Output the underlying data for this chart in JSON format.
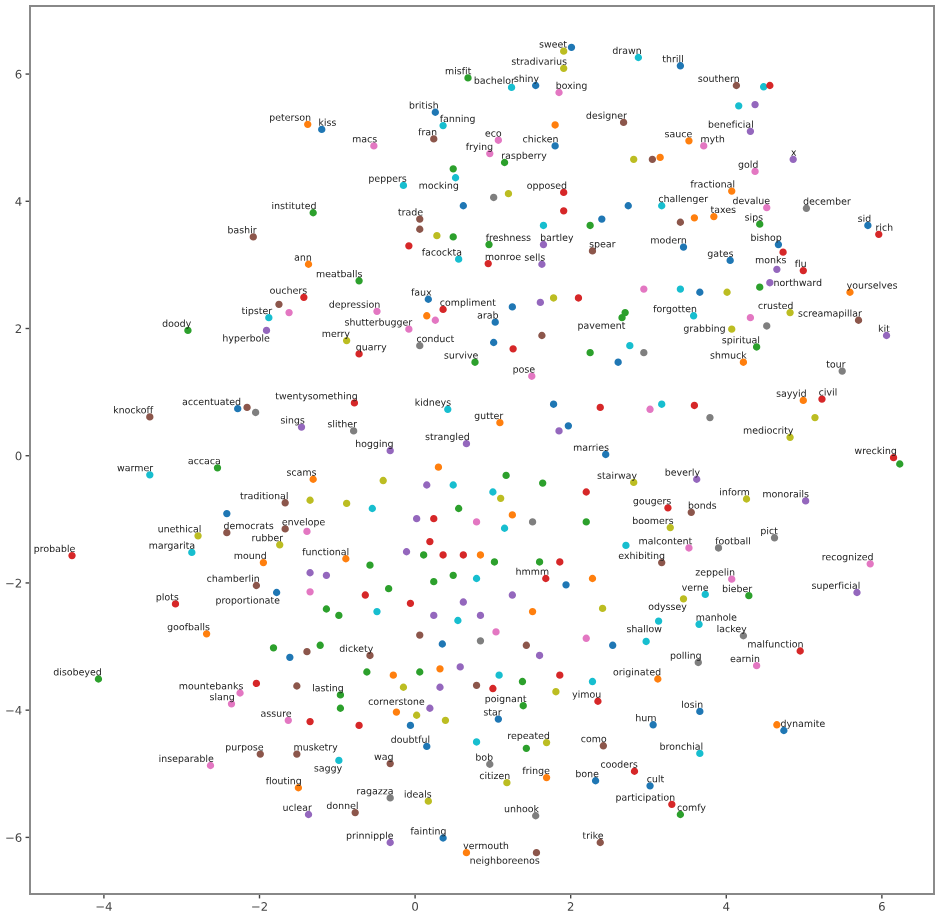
{
  "chart_data": {
    "type": "scatter",
    "marker": "circle",
    "grid": false,
    "xlim": [
      -4.95,
      6.67
    ],
    "ylim": [
      -6.89,
      7.07
    ],
    "xticks": [
      {
        "value": -4,
        "label": "−4"
      },
      {
        "value": -2,
        "label": "−2"
      },
      0,
      2,
      4,
      6
    ],
    "yticks": [
      {
        "value": -6,
        "label": "−6"
      },
      {
        "value": -4,
        "label": "−4"
      },
      {
        "value": -2,
        "label": "−2"
      },
      0,
      2,
      4,
      6
    ],
    "x": [
      -1.38,
      -1.2,
      -1.31,
      -2.08,
      -1.37,
      -0.72,
      -1.43,
      -1.88,
      -1.62,
      -1.75,
      -1.91,
      -2.92,
      -3.41,
      -2.28,
      -2.16,
      -2.05,
      -0.78,
      -1.46,
      -3.41,
      -2.54,
      -1.31,
      1.91,
      2.01,
      1.91,
      0.68,
      1.24,
      1.55,
      1.85,
      2.87,
      3.41,
      4.13,
      4.48,
      4.56,
      4.16,
      4.37,
      4.31,
      4.86,
      4.37,
      4.07,
      4.52,
      5.03,
      4.43,
      4.67,
      4.73,
      5.82,
      5.96,
      4.99,
      4.65,
      4.05,
      5.59,
      4.82,
      5.7,
      6.06,
      4.39,
      4.22,
      5.49,
      4.99,
      5.23,
      5.14,
      4.82,
      6.15,
      6.23,
      3.58,
      4.07,
      3.45,
      3.52,
      3.71,
      3.17,
      3.84,
      0.26,
      0.36,
      0.24,
      -0.53,
      1.07,
      1.8,
      1.8,
      2.68,
      1.15,
      0.96,
      0.49,
      0.52,
      -0.15,
      1.91,
      0.06,
      0.95,
      0.56,
      0.94,
      1.65,
      1.63,
      2.28,
      0.17,
      0.36,
      -0.49,
      -0.08,
      -0.88,
      -0.72,
      0.06,
      1.03,
      0.77,
      1.5,
      0.42,
      1.09,
      -0.79,
      0.66,
      -0.32,
      2.45,
      2.66,
      -4.41,
      -4.07,
      -3.08,
      -2.68,
      -2.87,
      -2.79,
      -2.42,
      -2.42,
      -1.67,
      -1.67,
      -1.74,
      -1.95,
      -1.78,
      -1.61,
      -2.25,
      -2.36,
      -2.04,
      -1.63,
      -1.99,
      -1.52,
      -2.63,
      -1.5,
      -1.37,
      2.81,
      3.62,
      4.26,
      5.02,
      3.25,
      3.55,
      3.28,
      4.62,
      5.85,
      5.68,
      3.9,
      3.52,
      3.17,
      4.07,
      4.29,
      3.73,
      3.45,
      3.13,
      3.65,
      4.22,
      4.95,
      3.64,
      4.39,
      3.12,
      3.66,
      4.65,
      4.74,
      3.06,
      3.66,
      2.82,
      3.02,
      3.3,
      3.41,
      2.38,
      1.55,
      0.66,
      1.56,
      0.36,
      -0.32,
      -0.32,
      0.17,
      -0.77,
      -0.98,
      -0.32,
      0.96,
      1.18,
      1.69,
      2.32,
      2.42,
      1.07,
      1.69,
      2.35,
      1.39,
      -0.41,
      0.15,
      0.49,
      0.3,
      -1.35,
      -0.55,
      -0.88,
      0.24,
      0.56,
      0.79,
      0.02,
      -1.39,
      -0.89,
      -0.11,
      0.19,
      0.11,
      0.36,
      0.62,
      0.84,
      -0.58,
      -1.14,
      0.49,
      0.79,
      0.24,
      -0.34,
      -0.64,
      -0.06,
      0.62,
      -1.35,
      -0.98,
      -0.49,
      0.24,
      0.55,
      0.84,
      -1.22,
      -1.39,
      0.06,
      0.35,
      0.84,
      -0.58,
      -0.62,
      -0.28,
      0.32,
      0.58,
      0.06,
      -0.15,
      0.32,
      0.79,
      -0.96,
      -0.96,
      -0.72,
      -1.35,
      -0.24,
      0.02,
      0.19,
      0.39,
      -0.06,
      0.15,
      0.79,
      1.17,
      1.64,
      1.0,
      1.1,
      2.2,
      1.25,
      1.51,
      2.2,
      1.15,
      2.71,
      1.02,
      1.6,
      1.86,
      1.94,
      1.68,
      2.28,
      1.25,
      1.51,
      2.41,
      2.97,
      2.2,
      2.54,
      1.04,
      1.43,
      1.6,
      1.08,
      1.38,
      1.86,
      2.28,
      1.0,
      1.81,
      1.43,
      2.61,
      2.25,
      1.26,
      1.01,
      1.63,
      1.78,
      2.1,
      1.25,
      1.61,
      0.26,
      0.15,
      1.78,
      2.38,
      1.85,
      1.97,
      0.62,
      1.01,
      1.2,
      1.65,
      2.4,
      2.25,
      1.91,
      0.06,
      0.28,
      0.49,
      -0.08,
      3.15,
      2.81,
      3.05,
      2.74,
      3.41,
      3.59,
      2.94,
      3.41,
      4.01,
      3.66,
      4.43,
      4.56,
      2.7,
      4.31,
      4.52,
      2.76,
      2.94,
      3.17,
      3.02,
      3.59,
      3.79,
      -1.35,
      -1.14,
      -1.52,
      -2.04,
      -1.82
    ],
    "values": [
      5.21,
      5.13,
      3.82,
      3.44,
      3.01,
      2.75,
      2.49,
      2.17,
      2.25,
      2.38,
      1.97,
      1.97,
      0.61,
      0.74,
      0.76,
      0.68,
      0.83,
      0.45,
      -0.3,
      -0.19,
      -0.37,
      6.36,
      6.42,
      6.09,
      5.94,
      5.79,
      5.82,
      5.71,
      6.26,
      6.13,
      5.82,
      5.8,
      5.82,
      5.5,
      5.52,
      5.1,
      4.66,
      4.47,
      4.16,
      3.9,
      3.89,
      3.64,
      3.32,
      3.2,
      3.62,
      3.48,
      2.91,
      2.93,
      3.07,
      2.57,
      2.25,
      2.13,
      1.89,
      1.71,
      1.47,
      1.33,
      0.87,
      0.89,
      0.6,
      0.29,
      -0.03,
      -0.13,
      2.2,
      1.99,
      3.28,
      4.95,
      4.87,
      3.93,
      3.76,
      5.4,
      5.19,
      4.98,
      4.87,
      4.96,
      4.87,
      5.2,
      5.24,
      4.61,
      4.75,
      4.51,
      4.37,
      4.25,
      4.14,
      3.72,
      3.32,
      3.09,
      3.02,
      3.32,
      3.01,
      3.22,
      2.46,
      2.3,
      2.27,
      1.99,
      1.81,
      1.6,
      1.73,
      2.1,
      1.47,
      1.25,
      0.73,
      0.52,
      0.39,
      0.19,
      0.08,
      0.02,
      2.17,
      -1.57,
      -3.51,
      -2.33,
      -2.8,
      -1.52,
      -1.26,
      -1.21,
      -0.91,
      -0.74,
      -1.15,
      -1.4,
      -1.68,
      -2.15,
      -3.17,
      -3.73,
      -3.9,
      -3.58,
      -4.16,
      -4.69,
      -4.69,
      -4.87,
      -5.22,
      -5.64,
      -0.42,
      -0.37,
      -0.68,
      -0.71,
      -0.82,
      -0.89,
      -1.13,
      -1.29,
      -1.7,
      -2.15,
      -1.45,
      -1.45,
      -1.68,
      -1.94,
      -2.2,
      -2.18,
      -2.25,
      -2.6,
      -2.65,
      -2.83,
      -3.07,
      -3.25,
      -3.3,
      -3.51,
      -4.02,
      -4.23,
      -4.32,
      -4.23,
      -4.68,
      -4.96,
      -5.19,
      -5.48,
      -5.64,
      -6.08,
      -5.66,
      -6.24,
      -6.24,
      -6.01,
      -6.08,
      -5.38,
      -5.43,
      -5.61,
      -4.79,
      -4.84,
      -4.85,
      -5.14,
      -5.06,
      -5.11,
      -4.56,
      -4.14,
      -4.51,
      -3.86,
      -3.93,
      -0.39,
      -0.46,
      -0.46,
      -0.18,
      -0.7,
      -0.83,
      -0.75,
      -0.99,
      -0.83,
      -1.04,
      -0.99,
      -1.19,
      -1.62,
      -1.51,
      -1.35,
      -1.56,
      -1.56,
      -1.56,
      -1.56,
      -1.72,
      -1.88,
      -1.88,
      -1.93,
      -1.98,
      -2.09,
      -2.19,
      -2.32,
      -2.3,
      -2.14,
      -2.51,
      -2.45,
      -2.51,
      -2.59,
      -2.51,
      -2.98,
      -3.08,
      -2.82,
      -2.96,
      -2.91,
      -3.14,
      -3.4,
      -3.45,
      -3.35,
      -3.32,
      -3.4,
      -3.64,
      -3.64,
      -3.61,
      -3.76,
      -3.97,
      -4.24,
      -4.18,
      -4.03,
      -4.08,
      -3.97,
      -4.16,
      -4.24,
      -4.57,
      -4.5,
      -0.31,
      -0.43,
      -0.57,
      -0.67,
      -0.57,
      -0.93,
      -1.04,
      -1.04,
      -1.14,
      -1.41,
      -1.67,
      -1.67,
      -1.67,
      -2.03,
      -1.93,
      -1.93,
      -2.19,
      -2.45,
      -2.4,
      -2.92,
      -2.87,
      -2.98,
      -2.77,
      -2.98,
      -3.14,
      -3.45,
      -3.55,
      -3.45,
      -3.55,
      -3.66,
      -3.71,
      -4.6,
      1.47,
      1.62,
      1.68,
      1.78,
      1.89,
      2.48,
      2.48,
      2.34,
      2.41,
      2.13,
      2.2,
      0.81,
      0.76,
      0.39,
      0.47,
      3.93,
      4.06,
      4.12,
      3.62,
      3.72,
      3.62,
      3.85,
      3.56,
      3.46,
      3.44,
      3.3,
      4.69,
      4.66,
      4.66,
      3.93,
      3.67,
      3.74,
      2.62,
      2.62,
      2.57,
      2.57,
      2.65,
      2.72,
      2.25,
      2.17,
      2.04,
      1.73,
      1.62,
      0.81,
      0.73,
      0.79,
      0.6,
      -1.84,
      -2.41,
      -3.62,
      -2.04,
      -3.02
    ],
    "colors": [
      "#ff7f0e",
      "#1f77b4",
      "#2ca02c",
      "#8c564b",
      "#ff7f0e",
      "#2ca02c",
      "#d62728",
      "#17becf",
      "#e377c2",
      "#8c564b",
      "#9467bd",
      "#2ca02c",
      "#8c564b",
      "#1f77b4",
      "#8c564b",
      "#7f7f7f",
      "#d62728",
      "#9467bd",
      "#17becf",
      "#2ca02c",
      "#ff7f0e",
      "#bcbd22",
      "#1f77b4",
      "#bcbd22",
      "#2ca02c",
      "#17becf",
      "#1f77b4",
      "#e377c2",
      "#17becf",
      "#1f77b4",
      "#8c564b",
      "#17becf",
      "#d62728",
      "#17becf",
      "#9467bd",
      "#9467bd",
      "#9467bd",
      "#e377c2",
      "#ff7f0e",
      "#e377c2",
      "#7f7f7f",
      "#2ca02c",
      "#1f77b4",
      "#d62728",
      "#1f77b4",
      "#d62728",
      "#d62728",
      "#9467bd",
      "#1f77b4",
      "#ff7f0e",
      "#bcbd22",
      "#8c564b",
      "#9467bd",
      "#2ca02c",
      "#ff7f0e",
      "#7f7f7f",
      "#ff7f0e",
      "#d62728",
      "#bcbd22",
      "#bcbd22",
      "#d62728",
      "#2ca02c",
      "#17becf",
      "#bcbd22",
      "#1f77b4",
      "#ff7f0e",
      "#e377c2",
      "#17becf",
      "#ff7f0e",
      "#1f77b4",
      "#17becf",
      "#8c564b",
      "#e377c2",
      "#e377c2",
      "#1f77b4",
      "#ff7f0e",
      "#8c564b",
      "#2ca02c",
      "#e377c2",
      "#2ca02c",
      "#17becf",
      "#17becf",
      "#d62728",
      "#8c564b",
      "#2ca02c",
      "#17becf",
      "#d62728",
      "#9467bd",
      "#9467bd",
      "#8c564b",
      "#1f77b4",
      "#d62728",
      "#e377c2",
      "#e377c2",
      "#bcbd22",
      "#d62728",
      "#7f7f7f",
      "#1f77b4",
      "#2ca02c",
      "#e377c2",
      "#17becf",
      "#ff7f0e",
      "#7f7f7f",
      "#9467bd",
      "#9467bd",
      "#1f77b4",
      "#2ca02c",
      "#d62728",
      "#2ca02c",
      "#d62728",
      "#ff7f0e",
      "#17becf",
      "#bcbd22",
      "#8c564b",
      "#1f77b4",
      "#8c564b",
      "#8c564b",
      "#bcbd22",
      "#ff7f0e",
      "#1f77b4",
      "#1f77b4",
      "#e377c2",
      "#e377c2",
      "#d62728",
      "#e377c2",
      "#8c564b",
      "#8c564b",
      "#e377c2",
      "#ff7f0e",
      "#9467bd",
      "#bcbd22",
      "#9467bd",
      "#bcbd22",
      "#9467bd",
      "#d62728",
      "#8c564b",
      "#bcbd22",
      "#7f7f7f",
      "#e377c2",
      "#9467bd",
      "#7f7f7f",
      "#e377c2",
      "#8c564b",
      "#e377c2",
      "#2ca02c",
      "#17becf",
      "#bcbd22",
      "#17becf",
      "#17becf",
      "#7f7f7f",
      "#d62728",
      "#7f7f7f",
      "#e377c2",
      "#ff7f0e",
      "#1f77b4",
      "#ff7f0e",
      "#1f77b4",
      "#1f77b4",
      "#17becf",
      "#d62728",
      "#1f77b4",
      "#d62728",
      "#2ca02c",
      "#8c564b",
      "#7f7f7f",
      "#ff7f0e",
      "#8c564b",
      "#1f77b4",
      "#9467bd",
      "#7f7f7f",
      "#bcbd22",
      "#8c564b",
      "#17becf",
      "#8c564b",
      "#7f7f7f",
      "#bcbd22",
      "#ff7f0e",
      "#1f77b4",
      "#8c564b",
      "#1f77b4",
      "#bcbd22",
      "#d62728",
      "#2ca02c",
      "#bcbd22",
      "#9467bd",
      "#17becf",
      "#ff7f0e",
      "#bcbd22",
      "#17becf",
      "#bcbd22",
      "#d62728",
      "#2ca02c",
      "#e377c2",
      "#9467bd",
      "#e377c2",
      "#ff7f0e",
      "#9467bd",
      "#d62728",
      "#2ca02c",
      "#d62728",
      "#d62728",
      "#ff7f0e",
      "#2ca02c",
      "#9467bd",
      "#2ca02c",
      "#17becf",
      "#2ca02c",
      "#2ca02c",
      "#d62728",
      "#d62728",
      "#9467bd",
      "#e377c2",
      "#2ca02c",
      "#17becf",
      "#9467bd",
      "#17becf",
      "#9467bd",
      "#2ca02c",
      "#8c564b",
      "#8c564b",
      "#1f77b4",
      "#7f7f7f",
      "#8c564b",
      "#2ca02c",
      "#ff7f0e",
      "#ff7f0e",
      "#9467bd",
      "#2ca02c",
      "#bcbd22",
      "#9467bd",
      "#8c564b",
      "#2ca02c",
      "#2ca02c",
      "#d62728",
      "#d62728",
      "#ff7f0e",
      "#bcbd22",
      "#9467bd",
      "#bcbd22",
      "#1f77b4",
      "#1f77b4",
      "#17becf",
      "#2ca02c",
      "#2ca02c",
      "#17becf",
      "#bcbd22",
      "#d62728",
      "#ff7f0e",
      "#7f7f7f",
      "#2ca02c",
      "#17becf",
      "#17becf",
      "#2ca02c",
      "#2ca02c",
      "#d62728",
      "#1f77b4",
      "#d62728",
      "#ff7f0e",
      "#9467bd",
      "#ff7f0e",
      "#bcbd22",
      "#17becf",
      "#e377c2",
      "#1f77b4",
      "#e377c2",
      "#8c564b",
      "#9467bd",
      "#17becf",
      "#2ca02c",
      "#d62728",
      "#17becf",
      "#d62728",
      "#bcbd22",
      "#2ca02c",
      "#1f77b4",
      "#2ca02c",
      "#d62728",
      "#1f77b4",
      "#8c564b",
      "#bcbd22",
      "#d62728",
      "#1f77b4",
      "#9467bd",
      "#e377c2",
      "#ff7f0e",
      "#1f77b4",
      "#d62728",
      "#9467bd",
      "#1f77b4",
      "#1f77b4",
      "#7f7f7f",
      "#bcbd22",
      "#17becf",
      "#1f77b4",
      "#2ca02c",
      "#d62728",
      "#8c564b",
      "#bcbd22",
      "#2ca02c",
      "#d62728",
      "#ff7f0e",
      "#bcbd22",
      "#8c564b",
      "#1f77b4",
      "#8c564b",
      "#ff7f0e",
      "#e377c2",
      "#17becf",
      "#bcbd22",
      "#1f77b4",
      "#2ca02c",
      "#9467bd",
      "#2ca02c",
      "#e377c2",
      "#7f7f7f",
      "#17becf",
      "#7f7f7f",
      "#17becf",
      "#e377c2",
      "#d62728",
      "#7f7f7f",
      "#9467bd",
      "#2ca02c",
      "#8c564b",
      "#8c564b",
      "#2ca02c"
    ],
    "annotations": [
      {
        "text": "peterson",
        "x": -1.38,
        "y": 5.21
      },
      {
        "text": "kiss",
        "x": -1.2,
        "y": 5.13
      },
      {
        "text": "instituted",
        "x": -1.31,
        "y": 3.82
      },
      {
        "text": "bashir",
        "x": -2.08,
        "y": 3.44
      },
      {
        "text": "ann",
        "x": -1.37,
        "y": 3.01
      },
      {
        "text": "meatballs",
        "x": -0.72,
        "y": 2.75
      },
      {
        "text": "ouchers",
        "x": -1.43,
        "y": 2.49
      },
      {
        "text": "tipster",
        "x": -1.88,
        "y": 2.17
      },
      {
        "text": "hyperbole",
        "x": -1.91,
        "y": 1.97
      },
      {
        "text": "doody",
        "x": -2.92,
        "y": 1.97
      },
      {
        "text": "knockoff",
        "x": -3.41,
        "y": 0.61
      },
      {
        "text": "accentuated",
        "x": -2.28,
        "y": 0.74
      },
      {
        "text": "twentysomething",
        "x": -0.78,
        "y": 0.83
      },
      {
        "text": "sings",
        "x": -1.46,
        "y": 0.45
      },
      {
        "text": "warmer",
        "x": -3.41,
        "y": -0.3
      },
      {
        "text": "accaca",
        "x": -2.54,
        "y": -0.19
      },
      {
        "text": "scams",
        "x": -1.31,
        "y": -0.37
      },
      {
        "text": "sweet",
        "x": 1.91,
        "y": 6.36
      },
      {
        "text": "stradivarius",
        "x": 1.91,
        "y": 6.09
      },
      {
        "text": "misfit",
        "x": 0.68,
        "y": 5.94
      },
      {
        "text": "bachelor",
        "x": 1.24,
        "y": 5.79
      },
      {
        "text": "shiny",
        "x": 1.55,
        "y": 5.82
      },
      {
        "text": "boxing",
        "x": 1.85,
        "y": 5.71
      },
      {
        "text": "drawn",
        "x": 2.87,
        "y": 6.26
      },
      {
        "text": "thrill",
        "x": 3.41,
        "y": 6.13
      },
      {
        "text": "southern",
        "x": 4.13,
        "y": 5.82
      },
      {
        "text": "beneficial",
        "x": 4.31,
        "y": 5.1
      },
      {
        "text": "x",
        "x": 4.86,
        "y": 4.66
      },
      {
        "text": "gold",
        "x": 4.37,
        "y": 4.47
      },
      {
        "text": "fractional",
        "x": 4.07,
        "y": 4.16
      },
      {
        "text": "devalue",
        "x": 4.52,
        "y": 3.9
      },
      {
        "text": "december",
        "x": 5.03,
        "y": 3.89
      },
      {
        "text": "sips",
        "x": 4.43,
        "y": 3.64
      },
      {
        "text": "bishop",
        "x": 4.67,
        "y": 3.32
      },
      {
        "text": "monks",
        "x": 4.73,
        "y": 3.2
      },
      {
        "text": "sid",
        "x": 5.82,
        "y": 3.62
      },
      {
        "text": "rich",
        "x": 5.96,
        "y": 3.48
      },
      {
        "text": "flu",
        "x": 4.99,
        "y": 2.91
      },
      {
        "text": "northward",
        "x": 4.65,
        "y": 2.93
      },
      {
        "text": "gates",
        "x": 4.05,
        "y": 3.07
      },
      {
        "text": "yourselves",
        "x": 5.59,
        "y": 2.57
      },
      {
        "text": "crusted",
        "x": 4.82,
        "y": 2.25
      },
      {
        "text": "screamapillar",
        "x": 5.7,
        "y": 2.13
      },
      {
        "text": "kit",
        "x": 6.06,
        "y": 1.89
      },
      {
        "text": "spiritual",
        "x": 4.39,
        "y": 1.71
      },
      {
        "text": "shmuck",
        "x": 4.22,
        "y": 1.47
      },
      {
        "text": "tour",
        "x": 5.49,
        "y": 1.33
      },
      {
        "text": "sayyid",
        "x": 4.99,
        "y": 0.87
      },
      {
        "text": "civil",
        "x": 5.23,
        "y": 0.89
      },
      {
        "text": "mediocrity",
        "x": 4.82,
        "y": 0.29
      },
      {
        "text": "wrecking",
        "x": 6.15,
        "y": -0.03
      },
      {
        "text": "forgotten",
        "x": 3.58,
        "y": 2.2
      },
      {
        "text": "grabbing",
        "x": 4.07,
        "y": 1.99
      },
      {
        "text": "modern",
        "x": 3.45,
        "y": 3.28
      },
      {
        "text": "sauce",
        "x": 3.52,
        "y": 4.95
      },
      {
        "text": "myth",
        "x": 3.71,
        "y": 4.87
      },
      {
        "text": "challenger",
        "x": 3.17,
        "y": 3.93
      },
      {
        "text": "taxes",
        "x": 3.84,
        "y": 3.76
      },
      {
        "text": "british",
        "x": 0.26,
        "y": 5.4
      },
      {
        "text": "fanning",
        "x": 0.36,
        "y": 5.19
      },
      {
        "text": "fran",
        "x": 0.24,
        "y": 4.98
      },
      {
        "text": "macs",
        "x": -0.53,
        "y": 4.87
      },
      {
        "text": "eco",
        "x": 1.07,
        "y": 4.96
      },
      {
        "text": "chicken",
        "x": 1.8,
        "y": 4.87
      },
      {
        "text": "designer",
        "x": 2.68,
        "y": 5.24
      },
      {
        "text": "raspberry",
        "x": 1.15,
        "y": 4.61
      },
      {
        "text": "frying",
        "x": 0.96,
        "y": 4.75
      },
      {
        "text": "mocking",
        "x": 0.52,
        "y": 4.37
      },
      {
        "text": "peppers",
        "x": -0.15,
        "y": 4.25
      },
      {
        "text": "opposed",
        "x": 1.91,
        "y": 4.14
      },
      {
        "text": "trade",
        "x": 0.06,
        "y": 3.72
      },
      {
        "text": "freshness",
        "x": 0.95,
        "y": 3.32
      },
      {
        "text": "facockta",
        "x": 0.56,
        "y": 3.09
      },
      {
        "text": "monroe",
        "x": 0.94,
        "y": 3.02
      },
      {
        "text": "bartley",
        "x": 1.65,
        "y": 3.32
      },
      {
        "text": "sells",
        "x": 1.63,
        "y": 3.01
      },
      {
        "text": "spear",
        "x": 2.28,
        "y": 3.22
      },
      {
        "text": "faux",
        "x": 0.17,
        "y": 2.46
      },
      {
        "text": "compliment",
        "x": 0.36,
        "y": 2.3
      },
      {
        "text": "depression",
        "x": -0.49,
        "y": 2.27
      },
      {
        "text": "shutterbugger",
        "x": -0.08,
        "y": 1.99
      },
      {
        "text": "merry",
        "x": -0.88,
        "y": 1.81
      },
      {
        "text": "quarry",
        "x": -0.72,
        "y": 1.6
      },
      {
        "text": "conduct",
        "x": 0.06,
        "y": 1.73
      },
      {
        "text": "arab",
        "x": 1.03,
        "y": 2.1
      },
      {
        "text": "survive",
        "x": 0.77,
        "y": 1.47
      },
      {
        "text": "pose",
        "x": 1.5,
        "y": 1.25
      },
      {
        "text": "kidneys",
        "x": 0.42,
        "y": 0.73
      },
      {
        "text": "gutter",
        "x": 1.09,
        "y": 0.52
      },
      {
        "text": "slither",
        "x": -0.79,
        "y": 0.39
      },
      {
        "text": "strangled",
        "x": 0.66,
        "y": 0.19
      },
      {
        "text": "hogging",
        "x": -0.32,
        "y": 0.08
      },
      {
        "text": "marries",
        "x": 2.45,
        "y": 0.02
      },
      {
        "text": "pavement",
        "x": 2.66,
        "y": 2.17
      },
      {
        "text": "probable",
        "x": -4.41,
        "y": -1.57
      },
      {
        "text": "disobeyed",
        "x": -4.07,
        "y": -3.51
      },
      {
        "text": "plots",
        "x": -3.08,
        "y": -2.33
      },
      {
        "text": "goofballs",
        "x": -2.68,
        "y": -2.8
      },
      {
        "text": "margarita",
        "x": -2.87,
        "y": -1.52
      },
      {
        "text": "unethical",
        "x": -2.79,
        "y": -1.26
      },
      {
        "text": "democrats",
        "x": -2.42,
        "y": -1.21
      },
      {
        "text": "traditional",
        "x": -1.67,
        "y": -0.74
      },
      {
        "text": "envelope",
        "x": -1.67,
        "y": -1.15
      },
      {
        "text": "rubber",
        "x": -1.74,
        "y": -1.4
      },
      {
        "text": "mound",
        "x": -1.95,
        "y": -1.68
      },
      {
        "text": "chamberlin",
        "x": -2.04,
        "y": -2.04
      },
      {
        "text": "proportionate",
        "x": -1.78,
        "y": -2.15
      },
      {
        "text": "mountebanks",
        "x": -2.25,
        "y": -3.73
      },
      {
        "text": "slang",
        "x": -2.36,
        "y": -3.9
      },
      {
        "text": "assure",
        "x": -1.63,
        "y": -4.16
      },
      {
        "text": "purpose",
        "x": -1.99,
        "y": -4.69
      },
      {
        "text": "musketry",
        "x": -1.52,
        "y": -4.69
      },
      {
        "text": "inseparable",
        "x": -2.63,
        "y": -4.87
      },
      {
        "text": "flouting",
        "x": -1.5,
        "y": -5.22
      },
      {
        "text": "uclear",
        "x": -1.37,
        "y": -5.64
      },
      {
        "text": "functional",
        "x": -0.89,
        "y": -1.62
      },
      {
        "text": "dickety",
        "x": -0.58,
        "y": -3.14
      },
      {
        "text": "lasting",
        "x": -0.96,
        "y": -3.76
      },
      {
        "text": "cornerstone",
        "x": -0.24,
        "y": -4.03
      },
      {
        "text": "doubtful",
        "x": 0.15,
        "y": -4.57
      },
      {
        "text": "hmmm",
        "x": 1.68,
        "y": -1.93
      },
      {
        "text": "stairway",
        "x": 2.81,
        "y": -0.42
      },
      {
        "text": "beverly",
        "x": 3.62,
        "y": -0.37
      },
      {
        "text": "inform",
        "x": 4.26,
        "y": -0.68
      },
      {
        "text": "monorails",
        "x": 5.02,
        "y": -0.71
      },
      {
        "text": "gougers",
        "x": 3.25,
        "y": -0.82
      },
      {
        "text": "bonds",
        "x": 3.55,
        "y": -0.89
      },
      {
        "text": "boomers",
        "x": 3.28,
        "y": -1.13
      },
      {
        "text": "pict",
        "x": 4.62,
        "y": -1.29
      },
      {
        "text": "recognized",
        "x": 5.85,
        "y": -1.7
      },
      {
        "text": "superficial",
        "x": 5.68,
        "y": -2.15
      },
      {
        "text": "football",
        "x": 3.9,
        "y": -1.45
      },
      {
        "text": "malcontent",
        "x": 3.52,
        "y": -1.45
      },
      {
        "text": "exhibiting",
        "x": 3.17,
        "y": -1.68
      },
      {
        "text": "zeppelin",
        "x": 4.07,
        "y": -1.94
      },
      {
        "text": "bieber",
        "x": 4.29,
        "y": -2.2
      },
      {
        "text": "verne",
        "x": 3.73,
        "y": -2.18
      },
      {
        "text": "odyssey",
        "x": 3.45,
        "y": -2.25
      },
      {
        "text": "shallow",
        "x": 3.13,
        "y": -2.6
      },
      {
        "text": "manhole",
        "x": 3.65,
        "y": -2.65
      },
      {
        "text": "lackey",
        "x": 4.22,
        "y": -2.83
      },
      {
        "text": "malfunction",
        "x": 4.95,
        "y": -3.07
      },
      {
        "text": "polling",
        "x": 3.64,
        "y": -3.25
      },
      {
        "text": "earnin",
        "x": 4.39,
        "y": -3.3
      },
      {
        "text": "originated",
        "x": 3.12,
        "y": -3.51
      },
      {
        "text": "losin",
        "x": 3.66,
        "y": -4.02
      },
      {
        "text": "dynamite",
        "x": 4.74,
        "y": -4.32
      },
      {
        "text": "hum",
        "x": 3.06,
        "y": -4.23
      },
      {
        "text": "bronchial",
        "x": 3.66,
        "y": -4.68
      },
      {
        "text": "cooders",
        "x": 2.82,
        "y": -4.96
      },
      {
        "text": "cult",
        "x": 3.02,
        "y": -5.19
      },
      {
        "text": "participation",
        "x": 3.3,
        "y": -5.48
      },
      {
        "text": "comfy",
        "x": 3.41,
        "y": -5.64
      },
      {
        "text": "trike",
        "x": 2.38,
        "y": -6.08
      },
      {
        "text": "unhook",
        "x": 1.55,
        "y": -5.66
      },
      {
        "text": "vermouth",
        "x": 0.66,
        "y": -6.24
      },
      {
        "text": "neighboreenos",
        "x": 1.56,
        "y": -6.24
      },
      {
        "text": "fainting",
        "x": 0.36,
        "y": -6.01
      },
      {
        "text": "prinnipple",
        "x": -0.32,
        "y": -6.08
      },
      {
        "text": "ragazza",
        "x": -0.32,
        "y": -5.38
      },
      {
        "text": "ideals",
        "x": 0.17,
        "y": -5.43
      },
      {
        "text": "donnel",
        "x": -0.77,
        "y": -5.61
      },
      {
        "text": "saggy",
        "x": -0.98,
        "y": -4.79
      },
      {
        "text": "wag",
        "x": -0.32,
        "y": -4.84
      },
      {
        "text": "bob",
        "x": 0.96,
        "y": -4.85
      },
      {
        "text": "citizen",
        "x": 1.18,
        "y": -5.14
      },
      {
        "text": "fringe",
        "x": 1.69,
        "y": -5.06
      },
      {
        "text": "bone",
        "x": 2.32,
        "y": -5.11
      },
      {
        "text": "como",
        "x": 2.42,
        "y": -4.56
      },
      {
        "text": "star",
        "x": 1.07,
        "y": -4.14
      },
      {
        "text": "repeated",
        "x": 1.69,
        "y": -4.51
      },
      {
        "text": "yimou",
        "x": 2.35,
        "y": -3.86
      },
      {
        "text": "poignant",
        "x": 1.39,
        "y": -3.93
      }
    ]
  }
}
